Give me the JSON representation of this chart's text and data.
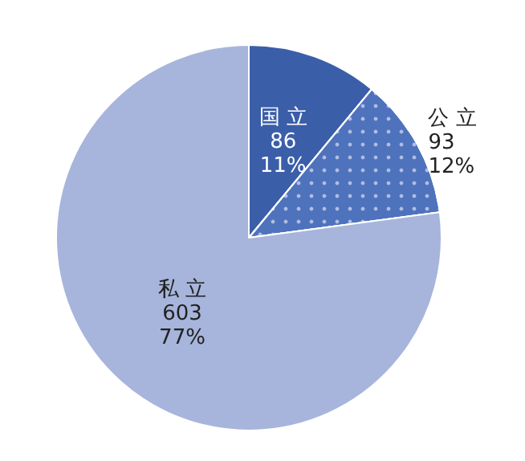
{
  "chart_data": {
    "type": "pie",
    "categories": [
      "国 立",
      "公 立",
      "私 立"
    ],
    "values": [
      86,
      93,
      603
    ],
    "value_labels": [
      "86\n11%",
      "93\n12%",
      "603\n77%"
    ],
    "colors": [
      "#3b5ea9",
      "#4f72bd",
      "#a7b5dc"
    ]
  }
}
